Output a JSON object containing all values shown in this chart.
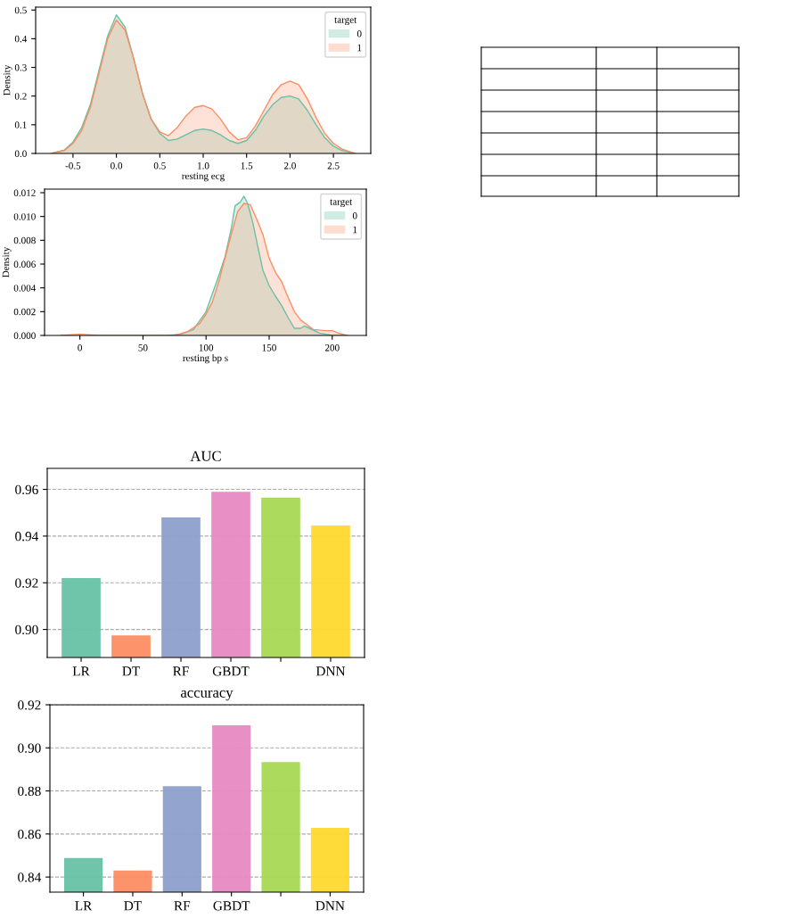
{
  "chart_data": [
    {
      "type": "area",
      "xlabel": "resting ecg",
      "ylabel": "Density",
      "legend_title": "target",
      "legend": "top right",
      "xlim": [
        -0.93,
        2.93
      ],
      "ylim": [
        0,
        0.51
      ],
      "xticks": [
        -0.5,
        {
          "value": 0,
          "label": "0.0"
        },
        0.5,
        {
          "value": 1,
          "label": "1.0"
        },
        1.5,
        {
          "value": 2,
          "label": "2.0"
        },
        2.5
      ],
      "yticks": [
        {
          "value": 0,
          "label": "0.0"
        },
        0.1,
        0.2,
        0.3,
        0.4,
        0.5
      ],
      "grid": false,
      "x": [
        -0.75,
        -0.6,
        -0.5,
        -0.4,
        -0.3,
        -0.2,
        -0.1,
        0,
        0.1,
        0.2,
        0.3,
        0.4,
        0.5,
        0.6,
        0.7,
        0.8,
        0.9,
        1.0,
        1.1,
        1.2,
        1.3,
        1.4,
        1.5,
        1.6,
        1.7,
        1.8,
        1.9,
        2.0,
        2.1,
        2.2,
        2.3,
        2.4,
        2.5,
        2.6,
        2.75
      ],
      "series": [
        {
          "name": "0",
          "color": "#66c2a5",
          "values": [
            0,
            0.012,
            0.04,
            0.09,
            0.17,
            0.29,
            0.41,
            0.483,
            0.44,
            0.33,
            0.21,
            0.12,
            0.07,
            0.045,
            0.05,
            0.065,
            0.08,
            0.085,
            0.08,
            0.065,
            0.045,
            0.035,
            0.045,
            0.08,
            0.13,
            0.17,
            0.195,
            0.2,
            0.19,
            0.15,
            0.1,
            0.055,
            0.025,
            0.01,
            0
          ]
        },
        {
          "name": "1",
          "color": "#fc8d62",
          "values": [
            0,
            0.01,
            0.035,
            0.08,
            0.16,
            0.28,
            0.4,
            0.465,
            0.43,
            0.33,
            0.21,
            0.12,
            0.075,
            0.062,
            0.09,
            0.13,
            0.16,
            0.167,
            0.155,
            0.12,
            0.075,
            0.048,
            0.055,
            0.095,
            0.15,
            0.205,
            0.24,
            0.252,
            0.24,
            0.19,
            0.125,
            0.07,
            0.035,
            0.015,
            0
          ]
        }
      ]
    },
    {
      "type": "area",
      "xlabel": "resting bp s",
      "ylabel": "Density",
      "legend_title": "target",
      "legend": "top right",
      "xlim": [
        -28,
        227
      ],
      "ylim": [
        0,
        0.0123
      ],
      "xticks": [
        0,
        50,
        100,
        150,
        200
      ],
      "yticks": [
        {
          "value": 0,
          "label": "0.000"
        },
        0.002,
        0.004,
        0.006,
        0.008,
        {
          "value": 0.01,
          "label": "0.010"
        },
        0.012
      ],
      "grid": false,
      "series": [
        {
          "name": "0",
          "color": "#66c2a5",
          "x": [
            70,
            80,
            90,
            100,
            105,
            110,
            115,
            120,
            123,
            127,
            130,
            133,
            137,
            140,
            145,
            150,
            155,
            160,
            165,
            170,
            175,
            178,
            182,
            190,
            200,
            210
          ],
          "values": [
            0,
            0.0001,
            0.0005,
            0.002,
            0.0035,
            0.005,
            0.0066,
            0.009,
            0.0109,
            0.0112,
            0.0117,
            0.0111,
            0.0095,
            0.008,
            0.0055,
            0.0042,
            0.0033,
            0.0025,
            0.0015,
            0.0006,
            0.0006,
            0.0008,
            0.0006,
            0.0002,
            0,
            0
          ]
        },
        {
          "name": "1",
          "color": "#fc8d62",
          "x": [
            -15,
            0,
            15,
            75,
            85,
            95,
            100,
            105,
            110,
            115,
            120,
            125,
            130,
            135,
            140,
            145,
            150,
            155,
            160,
            165,
            170,
            175,
            180,
            185,
            195,
            200,
            205,
            212
          ],
          "values": [
            0,
            0.0001,
            0,
            0,
            0.0003,
            0.001,
            0.0018,
            0.0028,
            0.0045,
            0.0065,
            0.0085,
            0.0104,
            0.0111,
            0.011,
            0.0098,
            0.0085,
            0.0065,
            0.0053,
            0.0045,
            0.0032,
            0.002,
            0.0013,
            0.0009,
            0.0005,
            0.0004,
            0.0004,
            0.0002,
            0
          ]
        }
      ]
    },
    {
      "type": "bar",
      "title": "AUC",
      "categories": [
        "LR",
        "DT",
        "RF",
        "GBDT",
        null,
        "DNN"
      ],
      "values": [
        0.922,
        0.8975,
        0.948,
        0.959,
        0.9565,
        0.9445
      ],
      "colors": [
        "#66c2a5",
        "#fc8d62",
        "#8da0cb",
        "#e78ac3",
        "#a6d854",
        "#ffd92f"
      ],
      "ylim": [
        0.888,
        0.969
      ],
      "yticks": [
        {
          "value": 0.9,
          "label": "0.90"
        },
        0.92,
        0.94,
        0.96
      ],
      "grid": "y",
      "line_style": "dashed"
    },
    {
      "type": "bar",
      "title": "accuracy",
      "categories": [
        "LR",
        "DT",
        "RF",
        "GBDT",
        null,
        "DNN"
      ],
      "values": [
        0.8488,
        0.843,
        0.8822,
        0.9105,
        0.8934,
        0.8628
      ],
      "colors": [
        "#66c2a5",
        "#fc8d62",
        "#8da0cb",
        "#e78ac3",
        "#a6d854",
        "#ffd92f"
      ],
      "ylim": [
        0.833,
        0.92
      ],
      "yticks": [
        0.84,
        0.86,
        0.88,
        {
          "value": 0.9,
          "label": "0.90"
        },
        0.92
      ],
      "grid": "y",
      "line_style": "dashed"
    }
  ]
}
